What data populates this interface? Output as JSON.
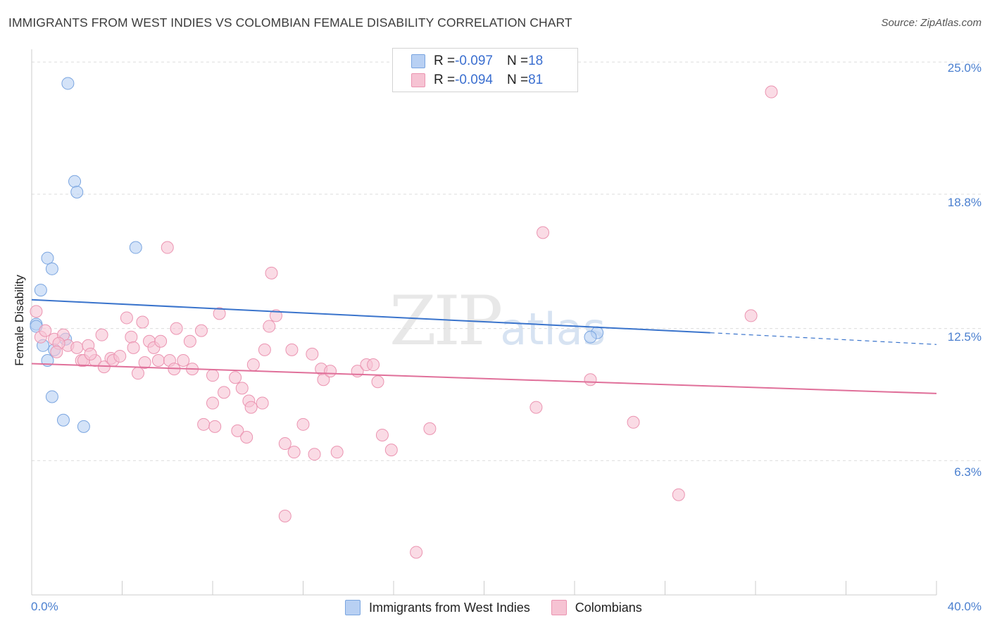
{
  "title": "IMMIGRANTS FROM WEST INDIES VS COLOMBIAN FEMALE DISABILITY CORRELATION CHART",
  "source": "Source: ZipAtlas.com",
  "watermark": {
    "zip": "ZIP",
    "atlas": "atlas"
  },
  "legend": {
    "r_label": "R = ",
    "n_label": "N = ",
    "series": [
      {
        "r": "-0.097",
        "n": "18"
      },
      {
        "r": "-0.094",
        "n": "81"
      }
    ]
  },
  "colors": {
    "blue_fill": "#b8d0f3",
    "blue_stroke": "#7aa5e0",
    "blue_line": "#3a74cc",
    "pink_fill": "#f6c3d3",
    "pink_stroke": "#eb94b1",
    "pink_line": "#e0709a",
    "grid": "#dcdcdc",
    "axis_text": "#4a7fcf"
  },
  "chart_data": {
    "type": "scatter",
    "title": "IMMIGRANTS FROM WEST INDIES VS COLOMBIAN FEMALE DISABILITY CORRELATION CHART",
    "xlabel": "",
    "ylabel": "Female Disability",
    "xlim": [
      0,
      40
    ],
    "ylim": [
      0,
      25.6
    ],
    "x_tick_labels": [
      "0.0%",
      "40.0%"
    ],
    "y_ticks": [
      6.3,
      12.5,
      18.8,
      25.0
    ],
    "y_tick_labels": [
      "6.3%",
      "12.5%",
      "18.8%",
      "25.0%"
    ],
    "grid": true,
    "series": [
      {
        "name": "Immigrants from West Indies",
        "color": "#b8d0f3",
        "points": [
          [
            1.6,
            24.0
          ],
          [
            1.9,
            19.4
          ],
          [
            2.0,
            18.9
          ],
          [
            4.6,
            16.3
          ],
          [
            0.7,
            15.8
          ],
          [
            0.9,
            15.3
          ],
          [
            0.4,
            14.3
          ],
          [
            0.2,
            12.7
          ],
          [
            0.2,
            12.6
          ],
          [
            1.5,
            12.0
          ],
          [
            0.5,
            11.7
          ],
          [
            1.0,
            11.5
          ],
          [
            0.7,
            11.0
          ],
          [
            0.9,
            9.3
          ],
          [
            1.4,
            8.2
          ],
          [
            2.3,
            7.9
          ],
          [
            25.0,
            12.3
          ],
          [
            24.7,
            12.1
          ]
        ],
        "trend": {
          "x0": 0,
          "y0": 13.85,
          "x1": 30,
          "y1": 12.3,
          "dash_to_x": 40,
          "dash_to_y": 11.75
        }
      },
      {
        "name": "Colombians",
        "color": "#f6c3d3",
        "points": [
          [
            0.2,
            13.3
          ],
          [
            0.4,
            12.1
          ],
          [
            1.0,
            12.0
          ],
          [
            1.4,
            12.2
          ],
          [
            1.6,
            11.7
          ],
          [
            2.0,
            11.6
          ],
          [
            2.5,
            11.7
          ],
          [
            1.2,
            11.8
          ],
          [
            2.2,
            11.0
          ],
          [
            3.1,
            12.2
          ],
          [
            3.5,
            11.1
          ],
          [
            4.2,
            13.0
          ],
          [
            4.4,
            12.1
          ],
          [
            4.9,
            12.8
          ],
          [
            5.2,
            11.9
          ],
          [
            5.4,
            11.6
          ],
          [
            5.7,
            11.9
          ],
          [
            6.4,
            12.5
          ],
          [
            7.0,
            11.9
          ],
          [
            7.5,
            12.4
          ],
          [
            8.3,
            13.2
          ],
          [
            10.6,
            15.1
          ],
          [
            10.8,
            13.1
          ],
          [
            10.5,
            12.6
          ],
          [
            6.0,
            16.3
          ],
          [
            2.3,
            11.0
          ],
          [
            2.8,
            11.0
          ],
          [
            3.2,
            10.7
          ],
          [
            3.6,
            11.0
          ],
          [
            3.9,
            11.2
          ],
          [
            4.7,
            10.4
          ],
          [
            5.0,
            10.9
          ],
          [
            5.6,
            11.0
          ],
          [
            6.1,
            11.0
          ],
          [
            6.7,
            11.0
          ],
          [
            7.1,
            10.6
          ],
          [
            8.0,
            10.3
          ],
          [
            9.0,
            10.2
          ],
          [
            9.8,
            10.8
          ],
          [
            10.3,
            11.5
          ],
          [
            11.5,
            11.5
          ],
          [
            12.4,
            11.3
          ],
          [
            12.8,
            10.6
          ],
          [
            12.9,
            10.1
          ],
          [
            13.2,
            10.5
          ],
          [
            14.4,
            10.5
          ],
          [
            14.8,
            10.8
          ],
          [
            15.1,
            10.8
          ],
          [
            15.3,
            10.0
          ],
          [
            8.0,
            9.0
          ],
          [
            8.5,
            9.5
          ],
          [
            9.3,
            9.7
          ],
          [
            9.6,
            9.1
          ],
          [
            9.7,
            8.8
          ],
          [
            7.6,
            8.0
          ],
          [
            8.1,
            7.9
          ],
          [
            9.1,
            7.7
          ],
          [
            9.5,
            7.4
          ],
          [
            11.2,
            7.1
          ],
          [
            11.6,
            6.7
          ],
          [
            12.5,
            6.6
          ],
          [
            13.5,
            6.7
          ],
          [
            12.0,
            8.0
          ],
          [
            15.5,
            7.5
          ],
          [
            15.9,
            6.8
          ],
          [
            17.6,
            7.8
          ],
          [
            11.2,
            3.7
          ],
          [
            17.0,
            2.0
          ],
          [
            22.6,
            17.0
          ],
          [
            22.3,
            8.8
          ],
          [
            24.7,
            10.1
          ],
          [
            26.6,
            8.1
          ],
          [
            28.6,
            4.7
          ],
          [
            31.8,
            13.1
          ],
          [
            32.7,
            23.6
          ],
          [
            10.2,
            9.0
          ],
          [
            4.5,
            11.6
          ],
          [
            2.6,
            11.3
          ],
          [
            1.1,
            11.4
          ],
          [
            0.6,
            12.4
          ],
          [
            6.3,
            10.6
          ]
        ],
        "trend": {
          "x0": 0,
          "y0": 10.85,
          "x1": 40,
          "y1": 9.45
        }
      }
    ]
  }
}
